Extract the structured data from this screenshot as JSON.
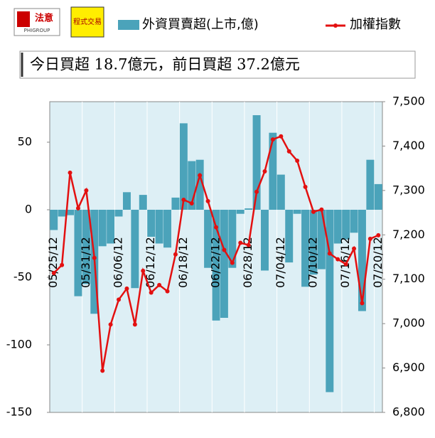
{
  "logo": {
    "name": "法意",
    "sub": "PHIGROUP",
    "box": "程式交易"
  },
  "chart_data": {
    "type": "bar-line",
    "title": "今日買超 18.7億元，前日買超 37.2億元",
    "categories": [
      "05/25/12",
      null,
      null,
      null,
      "05/31/12",
      null,
      null,
      null,
      "06/06/12",
      null,
      null,
      null,
      "06/12/12",
      null,
      null,
      null,
      "06/18/12",
      null,
      null,
      null,
      "06/22/12",
      null,
      null,
      null,
      "06/28/12",
      null,
      null,
      null,
      "07/04/12",
      null,
      null,
      null,
      "07/10/12",
      null,
      null,
      null,
      "07/16/12",
      null,
      null,
      null,
      "07/20/12"
    ],
    "series": [
      {
        "name": "外資買賣超(上市,億)",
        "type": "bar",
        "color": "#4ba3ba",
        "values": [
          -15,
          -5,
          -4,
          -64,
          -55,
          -77,
          -27,
          -25,
          -5,
          13,
          -58,
          11,
          -20,
          -25,
          -28,
          9,
          64,
          36,
          37,
          -43,
          -82,
          -80,
          -43,
          -3,
          1,
          70,
          -45,
          57,
          26,
          -39,
          -3,
          -57,
          -48,
          -44,
          -135,
          -25,
          -22,
          -17,
          -75,
          37,
          19
        ]
      },
      {
        "name": "加權指數",
        "type": "line",
        "axis": "y2",
        "color": "#e31010",
        "values": [
          7114,
          7132,
          7340,
          7260,
          7300,
          7148,
          6894,
          6998,
          7054,
          7079,
          6998,
          7119,
          7070,
          7087,
          7073,
          7156,
          7279,
          7271,
          7334,
          7276,
          7217,
          7166,
          7137,
          7182,
          7177,
          7297,
          7343,
          7415,
          7422,
          7388,
          7367,
          7308,
          7252,
          7257,
          7158,
          7145,
          7134,
          7169,
          7046,
          7191,
          7199
        ]
      }
    ],
    "ylim": [
      -150,
      80
    ],
    "yticks": [
      -150,
      -100,
      -50,
      0,
      50
    ],
    "y2lim": [
      6800,
      7500
    ],
    "y2ticks": [
      {
        "value": 6800,
        "label": "6,800"
      },
      {
        "value": 6900,
        "label": "6,900"
      },
      {
        "value": 7000,
        "label": "7,000"
      },
      {
        "value": 7100,
        "label": "7,100"
      },
      {
        "value": 7200,
        "label": "7,200"
      },
      {
        "value": 7300,
        "label": "7,300"
      },
      {
        "value": 7400,
        "label": "7,400"
      },
      {
        "value": 7500,
        "label": "7,500"
      }
    ]
  }
}
